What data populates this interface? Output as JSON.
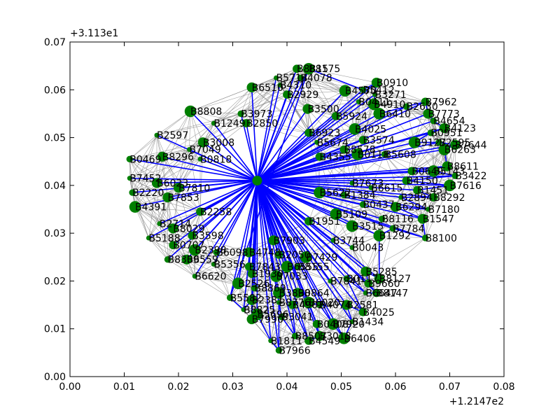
{
  "chart_data": {
    "type": "scatter",
    "title": "",
    "xlabel": "",
    "ylabel": "",
    "x_offset_text": "+1.2147e2",
    "y_offset_text": "+3.113e1",
    "xlim": [
      0.0,
      0.08
    ],
    "ylim": [
      0.0,
      0.07
    ],
    "xticks": [
      "0.00",
      "0.01",
      "0.02",
      "0.03",
      "0.04",
      "0.05",
      "0.06",
      "0.07",
      "0.08"
    ],
    "yticks": [
      "0.00",
      "0.01",
      "0.02",
      "0.03",
      "0.04",
      "0.05",
      "0.06",
      "0.07"
    ],
    "grid": false,
    "colors": {
      "node": "#007f00",
      "hub_edge": "#0000ff",
      "mesh_edge": "#808080",
      "axes": "#000000"
    },
    "hub": {
      "x": 0.0345,
      "y": 0.041
    },
    "nodes": [
      {
        "label": "B5714",
        "x": 0.038,
        "y": 0.0625
      },
      {
        "label": "B8815",
        "x": 0.0418,
        "y": 0.0644
      },
      {
        "label": "B8175",
        "x": 0.044,
        "y": 0.0644
      },
      {
        "label": "B4078",
        "x": 0.0425,
        "y": 0.0625
      },
      {
        "label": "B6510",
        "x": 0.0335,
        "y": 0.0605
      },
      {
        "label": "B4310",
        "x": 0.0387,
        "y": 0.061
      },
      {
        "label": "B2929",
        "x": 0.04,
        "y": 0.059
      },
      {
        "label": "B4570",
        "x": 0.0507,
        "y": 0.0598
      },
      {
        "label": "B5412",
        "x": 0.054,
        "y": 0.06
      },
      {
        "label": "B0910",
        "x": 0.0565,
        "y": 0.0615
      },
      {
        "label": "B3271",
        "x": 0.0562,
        "y": 0.059
      },
      {
        "label": "B7962",
        "x": 0.0655,
        "y": 0.0575
      },
      {
        "label": "B8808",
        "x": 0.0222,
        "y": 0.0555
      },
      {
        "label": "B3973",
        "x": 0.0315,
        "y": 0.055
      },
      {
        "label": "B3500",
        "x": 0.0438,
        "y": 0.056
      },
      {
        "label": "B0411",
        "x": 0.0532,
        "y": 0.0575
      },
      {
        "label": "B5924",
        "x": 0.049,
        "y": 0.0545
      },
      {
        "label": "B4910",
        "x": 0.056,
        "y": 0.057
      },
      {
        "label": "B2630",
        "x": 0.062,
        "y": 0.0565
      },
      {
        "label": "B7773",
        "x": 0.066,
        "y": 0.055
      },
      {
        "label": "B1249",
        "x": 0.0265,
        "y": 0.053
      },
      {
        "label": "B2850",
        "x": 0.0325,
        "y": 0.053
      },
      {
        "label": "B6410",
        "x": 0.057,
        "y": 0.055
      },
      {
        "label": "B4654",
        "x": 0.067,
        "y": 0.0535
      },
      {
        "label": "B4123",
        "x": 0.069,
        "y": 0.052
      },
      {
        "label": "B2597",
        "x": 0.016,
        "y": 0.0505
      },
      {
        "label": "B6923",
        "x": 0.044,
        "y": 0.051
      },
      {
        "label": "B4025",
        "x": 0.0525,
        "y": 0.0518
      },
      {
        "label": "B0951",
        "x": 0.0665,
        "y": 0.051
      },
      {
        "label": "B3008",
        "x": 0.0245,
        "y": 0.049
      },
      {
        "label": "B5674",
        "x": 0.0455,
        "y": 0.049
      },
      {
        "label": "B3574",
        "x": 0.054,
        "y": 0.0495
      },
      {
        "label": "B9127",
        "x": 0.0635,
        "y": 0.049
      },
      {
        "label": "B2595",
        "x": 0.068,
        "y": 0.049
      },
      {
        "label": "B7644",
        "x": 0.071,
        "y": 0.0485
      },
      {
        "label": "B7049",
        "x": 0.022,
        "y": 0.0475
      },
      {
        "label": "B8578",
        "x": 0.0505,
        "y": 0.0475
      },
      {
        "label": "B6263",
        "x": 0.069,
        "y": 0.0475
      },
      {
        "label": "B0469",
        "x": 0.011,
        "y": 0.0455
      },
      {
        "label": "B8296",
        "x": 0.017,
        "y": 0.046
      },
      {
        "label": "B0818",
        "x": 0.024,
        "y": 0.0455
      },
      {
        "label": "B4355",
        "x": 0.046,
        "y": 0.046
      },
      {
        "label": "B0118",
        "x": 0.053,
        "y": 0.0465
      },
      {
        "label": "B5608",
        "x": 0.058,
        "y": 0.0465
      },
      {
        "label": "B8611",
        "x": 0.0695,
        "y": 0.044
      },
      {
        "label": "B7452",
        "x": 0.011,
        "y": 0.0415
      },
      {
        "label": "B0649",
        "x": 0.063,
        "y": 0.043
      },
      {
        "label": "B5143",
        "x": 0.067,
        "y": 0.043
      },
      {
        "label": "B3422",
        "x": 0.071,
        "y": 0.042
      },
      {
        "label": "B6023",
        "x": 0.016,
        "y": 0.0405
      },
      {
        "label": "B7673",
        "x": 0.052,
        "y": 0.0405
      },
      {
        "label": "B4150",
        "x": 0.062,
        "y": 0.041
      },
      {
        "label": "B7616",
        "x": 0.07,
        "y": 0.04
      },
      {
        "label": "B2220",
        "x": 0.0115,
        "y": 0.0385
      },
      {
        "label": "B7810",
        "x": 0.02,
        "y": 0.0395
      },
      {
        "label": "B6615",
        "x": 0.0555,
        "y": 0.0395
      },
      {
        "label": "B1451",
        "x": 0.064,
        "y": 0.039
      },
      {
        "label": "B5622",
        "x": 0.046,
        "y": 0.0385
      },
      {
        "label": "B1384",
        "x": 0.0505,
        "y": 0.038
      },
      {
        "label": "B7853",
        "x": 0.018,
        "y": 0.0375
      },
      {
        "label": "B2894",
        "x": 0.061,
        "y": 0.0375
      },
      {
        "label": "B8292",
        "x": 0.067,
        "y": 0.0375
      },
      {
        "label": "B4391",
        "x": 0.012,
        "y": 0.0355
      },
      {
        "label": "B0437",
        "x": 0.054,
        "y": 0.036
      },
      {
        "label": "B6294",
        "x": 0.06,
        "y": 0.0355
      },
      {
        "label": "B7180",
        "x": 0.066,
        "y": 0.035
      },
      {
        "label": "B2258",
        "x": 0.024,
        "y": 0.0345
      },
      {
        "label": "B5109",
        "x": 0.049,
        "y": 0.034
      },
      {
        "label": "B8116",
        "x": 0.0575,
        "y": 0.033
      },
      {
        "label": "B1547",
        "x": 0.065,
        "y": 0.033
      },
      {
        "label": "B2714",
        "x": 0.0165,
        "y": 0.032
      },
      {
        "label": "B1951",
        "x": 0.044,
        "y": 0.0325
      },
      {
        "label": "B3515",
        "x": 0.052,
        "y": 0.0315
      },
      {
        "label": "B7784",
        "x": 0.0595,
        "y": 0.031
      },
      {
        "label": "B8029",
        "x": 0.019,
        "y": 0.031
      },
      {
        "label": "B5188",
        "x": 0.0145,
        "y": 0.029
      },
      {
        "label": "B3598",
        "x": 0.0225,
        "y": 0.0295
      },
      {
        "label": "B1292",
        "x": 0.057,
        "y": 0.0295
      },
      {
        "label": "B8100",
        "x": 0.0655,
        "y": 0.029
      },
      {
        "label": "B7903",
        "x": 0.0375,
        "y": 0.0285
      },
      {
        "label": "B3744",
        "x": 0.0485,
        "y": 0.0285
      },
      {
        "label": "B0707",
        "x": 0.019,
        "y": 0.0275
      },
      {
        "label": "B2398",
        "x": 0.023,
        "y": 0.0265
      },
      {
        "label": "B6098",
        "x": 0.027,
        "y": 0.026
      },
      {
        "label": "B4748",
        "x": 0.033,
        "y": 0.026
      },
      {
        "label": "B0043",
        "x": 0.052,
        "y": 0.027
      },
      {
        "label": "B2050",
        "x": 0.0385,
        "y": 0.0255
      },
      {
        "label": "B7429",
        "x": 0.0435,
        "y": 0.025
      },
      {
        "label": "B8309",
        "x": 0.018,
        "y": 0.0245
      },
      {
        "label": "B6559",
        "x": 0.0215,
        "y": 0.0245
      },
      {
        "label": "B5356",
        "x": 0.0265,
        "y": 0.0235
      },
      {
        "label": "B7843",
        "x": 0.033,
        "y": 0.023
      },
      {
        "label": "B6555",
        "x": 0.04,
        "y": 0.023
      },
      {
        "label": "B8155",
        "x": 0.042,
        "y": 0.023
      },
      {
        "label": "B5285",
        "x": 0.0545,
        "y": 0.022
      },
      {
        "label": "B6620",
        "x": 0.023,
        "y": 0.021
      },
      {
        "label": "B1930",
        "x": 0.0335,
        "y": 0.0215
      },
      {
        "label": "B7033",
        "x": 0.038,
        "y": 0.021
      },
      {
        "label": "B0117",
        "x": 0.051,
        "y": 0.0205
      },
      {
        "label": "B8127",
        "x": 0.057,
        "y": 0.0205
      },
      {
        "label": "B7841",
        "x": 0.048,
        "y": 0.02
      },
      {
        "label": "B9660",
        "x": 0.055,
        "y": 0.0195
      },
      {
        "label": "B2526",
        "x": 0.031,
        "y": 0.0195
      },
      {
        "label": "B8869",
        "x": 0.034,
        "y": 0.0185
      },
      {
        "label": "B0864",
        "x": 0.042,
        "y": 0.0175
      },
      {
        "label": "B6647",
        "x": 0.0545,
        "y": 0.0175
      },
      {
        "label": "B8147",
        "x": 0.0565,
        "y": 0.0175
      },
      {
        "label": "B3898",
        "x": 0.0385,
        "y": 0.0175
      },
      {
        "label": "B5582",
        "x": 0.0295,
        "y": 0.0165
      },
      {
        "label": "B2381",
        "x": 0.0335,
        "y": 0.016
      },
      {
        "label": "B8776",
        "x": 0.0385,
        "y": 0.0155
      },
      {
        "label": "B4902",
        "x": 0.041,
        "y": 0.015
      },
      {
        "label": "B6020",
        "x": 0.044,
        "y": 0.0155
      },
      {
        "label": "B4074",
        "x": 0.046,
        "y": 0.015
      },
      {
        "label": "B2581",
        "x": 0.051,
        "y": 0.015
      },
      {
        "label": "B8825",
        "x": 0.032,
        "y": 0.014
      },
      {
        "label": "B4025",
        "x": 0.054,
        "y": 0.0135
      },
      {
        "label": "B5696",
        "x": 0.0345,
        "y": 0.013
      },
      {
        "label": "B3041",
        "x": 0.039,
        "y": 0.0125
      },
      {
        "label": "B7990",
        "x": 0.0335,
        "y": 0.012
      },
      {
        "label": "B1434",
        "x": 0.052,
        "y": 0.0115
      },
      {
        "label": "B0408",
        "x": 0.0455,
        "y": 0.011
      },
      {
        "label": "B7920",
        "x": 0.0485,
        "y": 0.011
      },
      {
        "label": "B8507",
        "x": 0.0415,
        "y": 0.0085
      },
      {
        "label": "B3018",
        "x": 0.046,
        "y": 0.0085
      },
      {
        "label": "B1811",
        "x": 0.037,
        "y": 0.0075
      },
      {
        "label": "B4549",
        "x": 0.044,
        "y": 0.0075
      },
      {
        "label": "B6406",
        "x": 0.0505,
        "y": 0.008
      },
      {
        "label": "B7966",
        "x": 0.0385,
        "y": 0.0055
      }
    ]
  }
}
